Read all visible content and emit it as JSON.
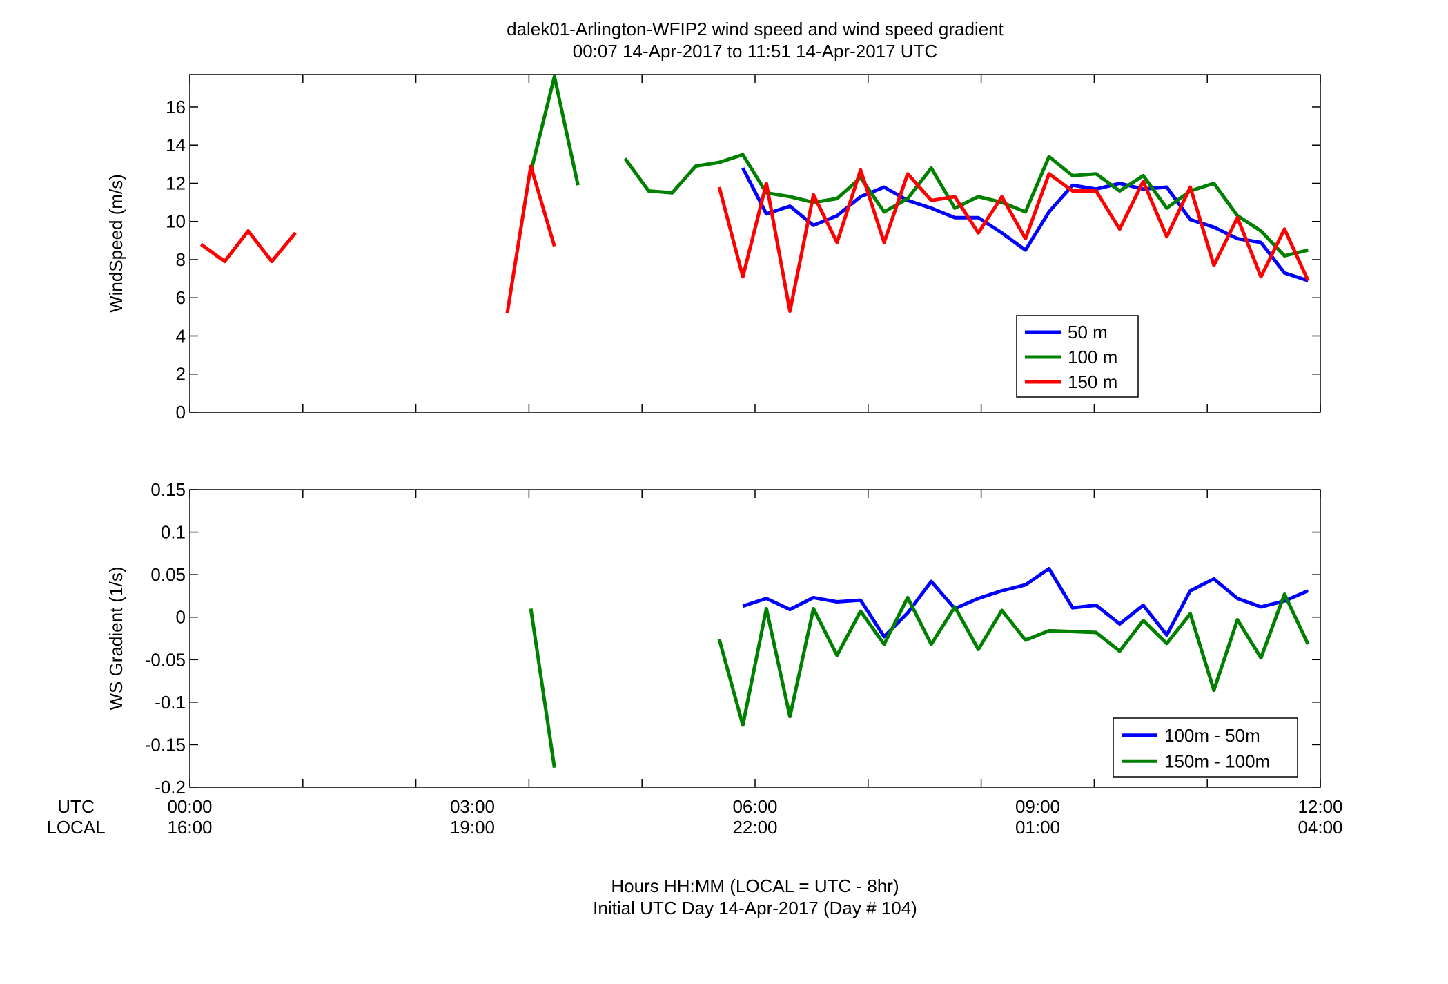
{
  "figure": {
    "title_line1": "dalek01-Arlington-WFIP2  wind speed and wind speed gradient",
    "title_line2": "00:07 14-Apr-2017 to 11:51 14-Apr-2017  UTC",
    "xlabel_line1": "Hours HH:MM  (LOCAL = UTC - 8hr)",
    "xlabel_line2": "Initial UTC Day 14-Apr-2017 (Day # 104)",
    "row_label_utc": "UTC",
    "row_label_local": "LOCAL"
  },
  "chart_data": [
    {
      "type": "line",
      "ylabel": "WindSpeed (m/s)",
      "xlim_hours": [
        0,
        12
      ],
      "ylim": [
        0,
        17.7
      ],
      "yticks": [
        0,
        2,
        4,
        6,
        8,
        10,
        12,
        14,
        16
      ],
      "xticks_utc": [
        "00:00",
        "03:00",
        "06:00",
        "09:00",
        "12:00"
      ],
      "xticks_local": [
        "16:00",
        "19:00",
        "22:00",
        "01:00",
        "04:00"
      ],
      "legend_position": "lower-right",
      "series": [
        {
          "name": "50 m",
          "color": "#0000ff",
          "segments": [
            [
              [
                5.87,
                12.8
              ],
              [
                6.12,
                10.4
              ],
              [
                6.37,
                10.8
              ],
              [
                6.62,
                9.8
              ],
              [
                6.87,
                10.3
              ],
              [
                7.12,
                11.3
              ],
              [
                7.37,
                11.8
              ],
              [
                7.62,
                11.1
              ],
              [
                7.87,
                10.7
              ],
              [
                8.12,
                10.2
              ],
              [
                8.37,
                10.2
              ],
              [
                8.62,
                9.4
              ],
              [
                8.87,
                8.5
              ],
              [
                9.12,
                10.5
              ],
              [
                9.37,
                11.9
              ],
              [
                9.62,
                11.7
              ],
              [
                9.87,
                12.0
              ],
              [
                10.12,
                11.7
              ],
              [
                10.37,
                11.8
              ],
              [
                10.62,
                10.1
              ],
              [
                10.87,
                9.7
              ],
              [
                11.12,
                9.1
              ],
              [
                11.37,
                8.9
              ],
              [
                11.62,
                7.3
              ],
              [
                11.87,
                6.9
              ]
            ]
          ]
        },
        {
          "name": "100 m",
          "color": "#008000",
          "segments": [
            [
              [
                3.62,
                12.6
              ],
              [
                3.87,
                17.6
              ],
              [
                4.12,
                11.9
              ]
            ],
            [
              [
                4.62,
                13.3
              ],
              [
                4.87,
                11.6
              ],
              [
                5.12,
                11.5
              ],
              [
                5.37,
                12.9
              ],
              [
                5.62,
                13.1
              ],
              [
                5.87,
                13.5
              ],
              [
                6.12,
                11.5
              ],
              [
                6.37,
                11.3
              ],
              [
                6.62,
                11.0
              ],
              [
                6.87,
                11.2
              ],
              [
                7.12,
                12.3
              ],
              [
                7.37,
                10.5
              ],
              [
                7.62,
                11.2
              ],
              [
                7.87,
                12.8
              ],
              [
                8.12,
                10.7
              ],
              [
                8.37,
                11.3
              ],
              [
                8.62,
                11.0
              ],
              [
                8.87,
                10.5
              ],
              [
                9.12,
                13.4
              ],
              [
                9.37,
                12.4
              ],
              [
                9.62,
                12.5
              ],
              [
                9.87,
                11.6
              ],
              [
                10.12,
                12.4
              ],
              [
                10.37,
                10.7
              ],
              [
                10.62,
                11.6
              ],
              [
                10.87,
                12.0
              ],
              [
                11.12,
                10.3
              ],
              [
                11.37,
                9.5
              ],
              [
                11.62,
                8.2
              ],
              [
                11.87,
                8.5
              ]
            ]
          ]
        },
        {
          "name": "150 m",
          "color": "#ff0000",
          "segments": [
            [
              [
                0.12,
                8.8
              ],
              [
                0.37,
                7.9
              ],
              [
                0.62,
                9.5
              ],
              [
                0.87,
                7.9
              ],
              [
                1.12,
                9.4
              ]
            ],
            [
              [
                3.37,
                5.2
              ],
              [
                3.62,
                12.9
              ],
              [
                3.87,
                8.7
              ]
            ],
            [
              [
                5.62,
                11.8
              ],
              [
                5.87,
                7.1
              ],
              [
                6.12,
                12.0
              ],
              [
                6.37,
                5.3
              ],
              [
                6.62,
                11.4
              ],
              [
                6.87,
                8.9
              ],
              [
                7.12,
                12.7
              ],
              [
                7.37,
                8.9
              ],
              [
                7.62,
                12.5
              ],
              [
                7.87,
                11.1
              ],
              [
                8.12,
                11.3
              ],
              [
                8.37,
                9.4
              ],
              [
                8.62,
                11.3
              ],
              [
                8.87,
                9.1
              ],
              [
                9.12,
                12.5
              ],
              [
                9.37,
                11.6
              ],
              [
                9.62,
                11.6
              ],
              [
                9.87,
                9.6
              ],
              [
                10.12,
                12.1
              ],
              [
                10.37,
                9.2
              ],
              [
                10.62,
                11.8
              ],
              [
                10.87,
                7.7
              ],
              [
                11.12,
                10.2
              ],
              [
                11.37,
                7.1
              ],
              [
                11.62,
                9.6
              ],
              [
                11.87,
                6.9
              ]
            ]
          ]
        }
      ]
    },
    {
      "type": "line",
      "ylabel": "WS Gradient (1/s)",
      "xlim_hours": [
        0,
        12
      ],
      "ylim": [
        -0.2,
        0.15
      ],
      "yticks": [
        -0.2,
        -0.15,
        -0.1,
        -0.05,
        0,
        0.05,
        0.1,
        0.15
      ],
      "ytick_labels": [
        "-0.2",
        "-0.15",
        "-0.1",
        "-0.05",
        "0",
        "0.05",
        "0.1",
        "0.15"
      ],
      "xticks_utc": [
        "00:00",
        "03:00",
        "06:00",
        "09:00",
        "12:00"
      ],
      "xticks_local": [
        "16:00",
        "19:00",
        "22:00",
        "01:00",
        "04:00"
      ],
      "legend_position": "lower-right",
      "series": [
        {
          "name": "100m - 50m",
          "color": "#0000ff",
          "segments": [
            [
              [
                5.87,
                0.013
              ],
              [
                6.12,
                0.022
              ],
              [
                6.37,
                0.009
              ],
              [
                6.62,
                0.023
              ],
              [
                6.87,
                0.018
              ],
              [
                7.12,
                0.02
              ],
              [
                7.37,
                -0.023
              ],
              [
                7.62,
                0.005
              ],
              [
                7.87,
                0.042
              ],
              [
                8.12,
                0.01
              ],
              [
                8.37,
                0.022
              ],
              [
                8.62,
                0.031
              ],
              [
                8.87,
                0.038
              ],
              [
                9.12,
                0.057
              ],
              [
                9.37,
                0.011
              ],
              [
                9.62,
                0.014
              ],
              [
                9.87,
                -0.008
              ],
              [
                10.12,
                0.014
              ],
              [
                10.37,
                -0.021
              ],
              [
                10.62,
                0.031
              ],
              [
                10.87,
                0.045
              ],
              [
                11.12,
                0.022
              ],
              [
                11.37,
                0.012
              ],
              [
                11.62,
                0.019
              ],
              [
                11.87,
                0.031
              ]
            ]
          ]
        },
        {
          "name": "150m - 100m",
          "color": "#008000",
          "segments": [
            [
              [
                3.62,
                0.01
              ],
              [
                3.87,
                -0.177
              ]
            ],
            [
              [
                5.62,
                -0.026
              ],
              [
                5.87,
                -0.127
              ],
              [
                6.12,
                0.01
              ],
              [
                6.37,
                -0.117
              ],
              [
                6.62,
                0.01
              ],
              [
                6.87,
                -0.045
              ],
              [
                7.12,
                0.007
              ],
              [
                7.37,
                -0.032
              ],
              [
                7.62,
                0.023
              ],
              [
                7.87,
                -0.032
              ],
              [
                8.12,
                0.012
              ],
              [
                8.37,
                -0.038
              ],
              [
                8.62,
                0.008
              ],
              [
                8.87,
                -0.027
              ],
              [
                9.12,
                -0.016
              ],
              [
                9.37,
                -0.017
              ],
              [
                9.62,
                -0.018
              ],
              [
                9.87,
                -0.04
              ],
              [
                10.12,
                -0.004
              ],
              [
                10.37,
                -0.031
              ],
              [
                10.62,
                0.004
              ],
              [
                10.87,
                -0.086
              ],
              [
                11.12,
                -0.003
              ],
              [
                11.37,
                -0.048
              ],
              [
                11.62,
                0.027
              ],
              [
                11.87,
                -0.032
              ]
            ]
          ]
        }
      ]
    }
  ]
}
